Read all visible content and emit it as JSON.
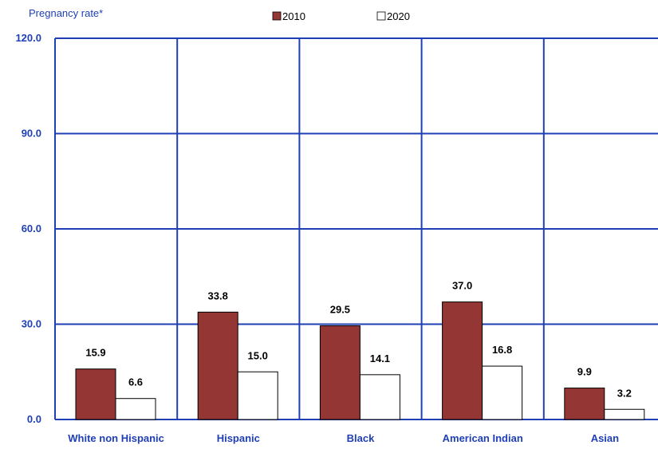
{
  "chart_data": {
    "type": "bar",
    "ylabel": "Pregnancy rate*",
    "xlabel": "",
    "title": "",
    "categories": [
      "White non Hispanic",
      "Hispanic",
      "Black",
      "American Indian",
      "Asian"
    ],
    "series": [
      {
        "name": "2010",
        "values": [
          15.9,
          33.8,
          29.5,
          37.0,
          9.9
        ],
        "color": "#943634"
      },
      {
        "name": "2020",
        "values": [
          6.6,
          15.0,
          14.1,
          16.8,
          3.2
        ],
        "color": "#ffffff"
      }
    ],
    "ylim": [
      0,
      120
    ],
    "yticks": [
      "0.0",
      "30.0",
      "60.0",
      "90.0",
      "120.0"
    ],
    "grid": true,
    "grid_color": "#1f3fb4",
    "legend": "top",
    "data_labels": [
      [
        "15.9",
        "33.8",
        "29.5",
        "37.0",
        "9.9"
      ],
      [
        "6.6",
        "15.0",
        "14.1",
        "16.8",
        "3.2"
      ]
    ]
  }
}
